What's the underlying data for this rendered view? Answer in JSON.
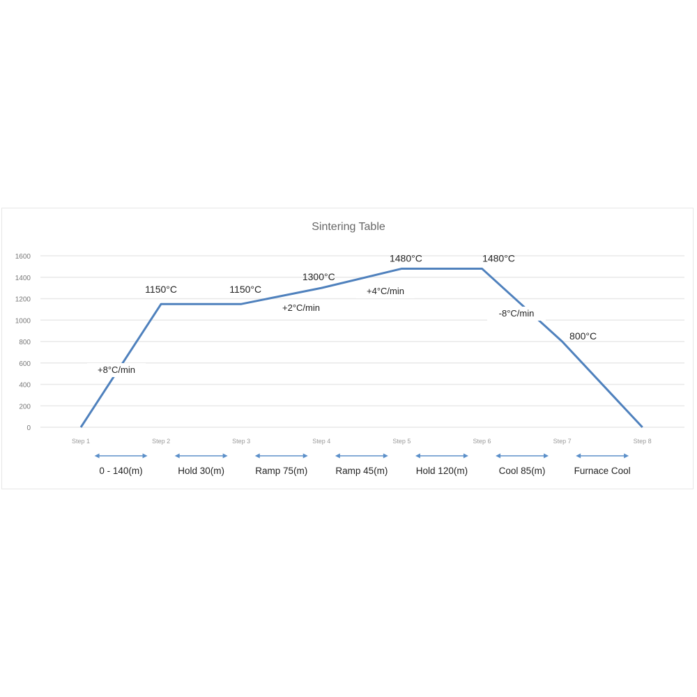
{
  "chart_data": {
    "type": "line",
    "title": "Sintering Table",
    "categories": [
      "Step 1",
      "Step 2",
      "Step 3",
      "Step 4",
      "Step 5",
      "Step 6",
      "Step 7",
      "Step 8"
    ],
    "series": [
      {
        "values": [
          0,
          1150,
          1150,
          1300,
          1480,
          1480,
          800,
          0
        ],
        "color": "#4f81bd"
      }
    ],
    "ylim": [
      0,
      1600
    ],
    "yticks": [
      "0",
      "200",
      "400",
      "600",
      "800",
      "1000",
      "1200",
      "1400",
      "1600"
    ],
    "grid": true,
    "point_labels": [
      {
        "step": 2,
        "text": "1150°C"
      },
      {
        "step": 3,
        "text": "1150°C"
      },
      {
        "step": 4,
        "text": "1300°C"
      },
      {
        "step": 5,
        "text": "1480°C"
      },
      {
        "step": 6,
        "text": "1480°C"
      },
      {
        "step": 7,
        "text": "800°C"
      }
    ],
    "rate_labels": [
      "+8°C/min",
      "+2°C/min",
      "+4°C/min",
      "-8°C/min"
    ],
    "segments": [
      "0 - 140(m)",
      "Hold 30(m)",
      "Ramp 75(m)",
      "Ramp 45(m)",
      "Hold 120(m)",
      "Cool 85(m)",
      "Furnace Cool"
    ],
    "colors": {
      "line": "#4f81bd",
      "grid": "#e8e8e8",
      "arrow": "#5b8fc9",
      "text": "#222222",
      "axis_text": "#777777"
    }
  }
}
